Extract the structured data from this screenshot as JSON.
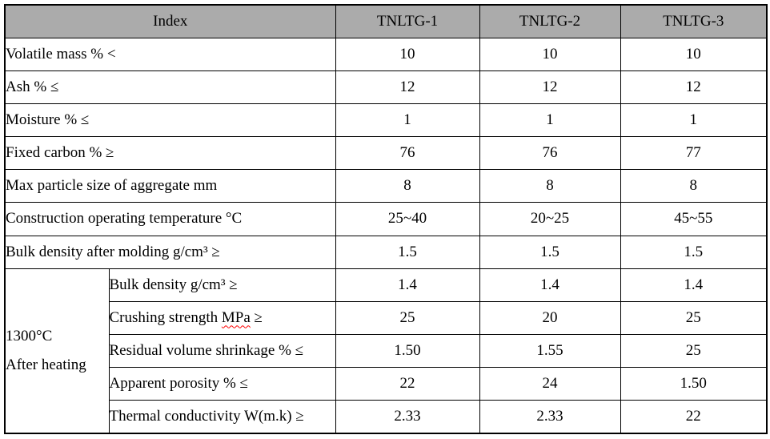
{
  "table": {
    "header": {
      "index_label": "Index",
      "columns": [
        "TNLTG-1",
        "TNLTG-2",
        "TNLTG-3"
      ]
    },
    "rows": [
      {
        "label": "Volatile mass % <",
        "values": [
          "10",
          "10",
          "10"
        ]
      },
      {
        "label": "Ash % ≤",
        "values": [
          "12",
          "12",
          "12"
        ]
      },
      {
        "label": "Moisture % ≤",
        "values": [
          "1",
          "1",
          "1"
        ]
      },
      {
        "label": "Fixed carbon % ≥",
        "values": [
          "76",
          "76",
          "77"
        ]
      },
      {
        "label": "Max particle size of aggregate mm",
        "values": [
          "8",
          "8",
          "8"
        ]
      },
      {
        "label": "Construction operating temperature °C",
        "values": [
          "25~40",
          "20~25",
          "45~55"
        ]
      },
      {
        "label": "Bulk density after molding g/cm³ ≥",
        "values": [
          "1.5",
          "1.5",
          "1.5"
        ]
      }
    ],
    "group": {
      "label_line1": "1300°C",
      "label_line2": "After heating",
      "rows": [
        {
          "pre": "Bulk density g/cm³ ≥",
          "wavy": "",
          "post": "",
          "values": [
            "1.4",
            "1.4",
            "1.4"
          ]
        },
        {
          "pre": "Crushing strength ",
          "wavy": "MPa",
          "post": " ≥",
          "values": [
            "25",
            "20",
            "25"
          ]
        },
        {
          "pre": "Residual volume shrinkage % ≤",
          "wavy": "",
          "post": "",
          "values": [
            "1.50",
            "1.55",
            "25"
          ]
        },
        {
          "pre": "Apparent porosity % ≤",
          "wavy": "",
          "post": "",
          "values": [
            "22",
            "24",
            "1.50"
          ]
        },
        {
          "pre": "Thermal conductivity W(m.k) ≥",
          "wavy": "",
          "post": "",
          "values": [
            "2.33",
            "2.33",
            "22"
          ]
        }
      ]
    },
    "colors": {
      "header_bg": "#ababab",
      "border": "#000000",
      "spellcheck_underline": "#ff0000"
    }
  }
}
